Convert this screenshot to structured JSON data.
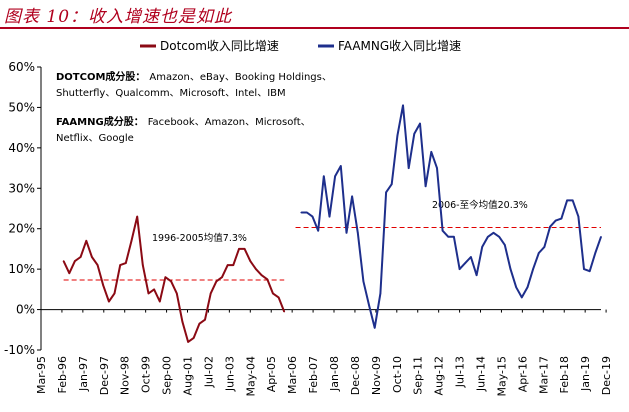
{
  "header": {
    "figure_title": "图表 10：收入增速也是如此"
  },
  "chart_data": {
    "type": "line",
    "title": "收入增速也是如此",
    "ylim": [
      -0.1,
      0.6
    ],
    "y_ticks": [
      -0.1,
      0.0,
      0.1,
      0.2,
      0.3,
      0.4,
      0.5,
      0.6
    ],
    "y_tick_labels": [
      "-10%",
      "0%",
      "10%",
      "20%",
      "30%",
      "40%",
      "50%",
      "60%"
    ],
    "x_index_range": [
      0,
      99
    ],
    "x_tick_labels": [
      "Mar-95",
      "Feb-96",
      "Jan-97",
      "Dec-97",
      "Nov-98",
      "Oct-99",
      "Sep-00",
      "Aug-01",
      "Jul-02",
      "Jun-03",
      "May-04",
      "Apr-05",
      "Mar-06",
      "Feb-07",
      "Jan-08",
      "Dec-08",
      "Nov-09",
      "Oct-10",
      "Sep-11",
      "Aug-12",
      "Jul-13",
      "Jun-14",
      "May-15",
      "Apr-16",
      "Mar-17",
      "Feb-18",
      "Jan-19",
      "Dec-19"
    ],
    "x_tick_positions": [
      0,
      3.7,
      7.4,
      11.1,
      14.8,
      18.5,
      22.2,
      25.9,
      29.6,
      33.3,
      37.0,
      40.7,
      44.4,
      48.1,
      51.8,
      55.5,
      59.2,
      62.9,
      66.6,
      70.3,
      74.0,
      77.7,
      81.4,
      85.1,
      88.8,
      92.5,
      96.2,
      99.9
    ],
    "series": [
      {
        "name": "Dotcom收入同比增速",
        "color": "#8b0a14",
        "x": [
          4,
          5,
          6,
          7,
          8,
          9,
          10,
          11,
          12,
          13,
          14,
          15,
          16,
          17,
          18,
          19,
          20,
          21,
          22,
          23,
          24,
          25,
          26,
          27,
          28,
          29,
          30,
          31,
          32,
          33,
          34,
          35,
          36,
          37,
          38,
          39,
          40,
          41,
          42,
          43
        ],
        "values": [
          0.12,
          0.09,
          0.12,
          0.13,
          0.17,
          0.13,
          0.11,
          0.06,
          0.02,
          0.04,
          0.11,
          0.115,
          0.17,
          0.23,
          0.11,
          0.04,
          0.05,
          0.02,
          0.08,
          0.07,
          0.04,
          -0.03,
          -0.08,
          -0.07,
          -0.035,
          -0.025,
          0.04,
          0.07,
          0.08,
          0.11,
          0.11,
          0.15,
          0.15,
          0.12,
          0.1,
          0.085,
          0.075,
          0.04,
          0.03,
          -0.005
        ]
      },
      {
        "name": "FAAMNG收入同比增速",
        "color": "#1e2f8c",
        "x": [
          46,
          47,
          48,
          49,
          50,
          51,
          52,
          53,
          54,
          55,
          56,
          57,
          58,
          59,
          60,
          61,
          62,
          63,
          64,
          65,
          66,
          67,
          68,
          69,
          70,
          71,
          72,
          73,
          74,
          75,
          76,
          77,
          78,
          79,
          80,
          81,
          82,
          83,
          84,
          85,
          86,
          87,
          88,
          89,
          90,
          91,
          92,
          93,
          94,
          95,
          96,
          97,
          98,
          99
        ],
        "values": [
          0.24,
          0.24,
          0.23,
          0.195,
          0.33,
          0.23,
          0.33,
          0.355,
          0.19,
          0.28,
          0.19,
          0.07,
          0.01,
          -0.045,
          0.04,
          0.29,
          0.31,
          0.43,
          0.505,
          0.35,
          0.435,
          0.46,
          0.305,
          0.39,
          0.35,
          0.195,
          0.18,
          0.18,
          0.1,
          0.115,
          0.13,
          0.085,
          0.155,
          0.18,
          0.19,
          0.18,
          0.16,
          0.1,
          0.055,
          0.03,
          0.055,
          0.1,
          0.14,
          0.155,
          0.205,
          0.22,
          0.225,
          0.27,
          0.27,
          0.23,
          0.1,
          0.095,
          0.14,
          0.18
        ]
      }
    ],
    "reference_lines": [
      {
        "name": "1996-2005均值7.3%",
        "value": 0.073,
        "x_range": [
          4,
          43
        ],
        "color": "#e00000",
        "style": "dashed"
      },
      {
        "name": "2006-至今均值20.3%",
        "value": 0.203,
        "x_range": [
          45,
          99
        ],
        "color": "#e00000",
        "style": "dashed"
      }
    ],
    "annotations": {
      "dotcom_avg_label": "1996-2005均值7.3%",
      "faamng_avg_label": "2006-至今均值20.3%",
      "dotcom_members_title": "DOTCOM成分股：",
      "dotcom_members_line1": "Amazon、eBay、Booking Holdings、",
      "dotcom_members_line2": "Shutterfly、Qualcomm、Microsoft、Intel、IBM",
      "faamng_members_title": "FAAMNG成分股：",
      "faamng_members_line1": "Facebook、Amazon、Microsoft、",
      "faamng_members_line2": "Netflix、Google"
    },
    "legend": {
      "position": "top-center"
    },
    "grid": false
  }
}
